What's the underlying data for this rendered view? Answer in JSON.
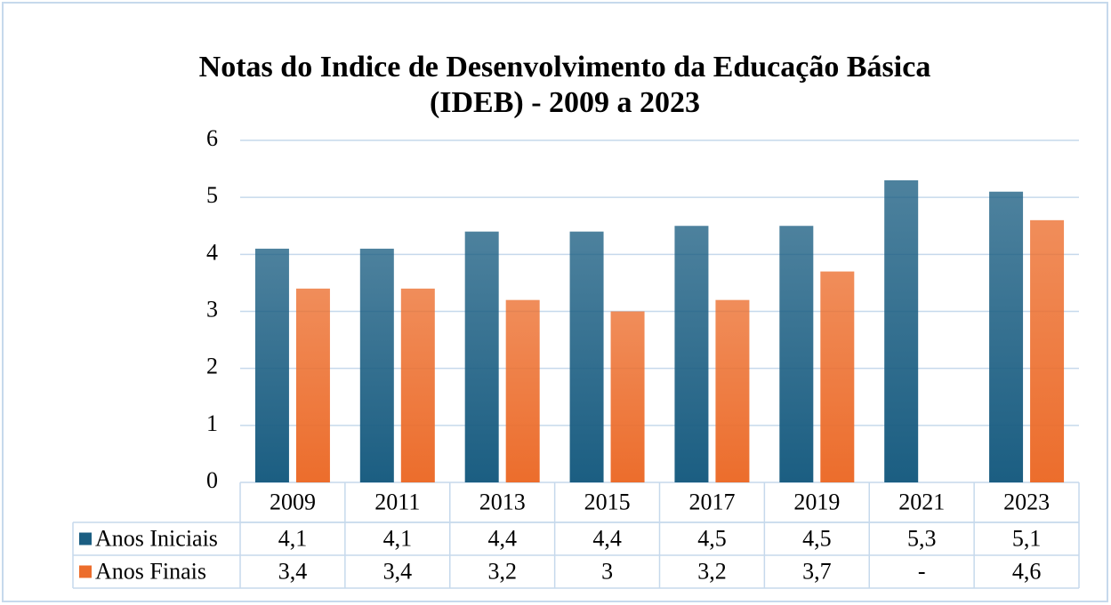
{
  "chart_data": {
    "type": "bar",
    "title": "Notas do Indice de Desenvolvimento da Educação Básica",
    "subtitle": "(IDEB) - 2009 a 2023",
    "categories": [
      "2009",
      "2011",
      "2013",
      "2015",
      "2017",
      "2019",
      "2021",
      "2023"
    ],
    "series": [
      {
        "name": "Anos Iniciais",
        "color": "#1b5e82",
        "values": [
          4.1,
          4.1,
          4.4,
          4.4,
          4.5,
          4.5,
          5.3,
          5.1
        ],
        "value_labels": [
          "4,1",
          "4,1",
          "4,4",
          "4,4",
          "4,5",
          "4,5",
          "5,3",
          "5,1"
        ]
      },
      {
        "name": "Anos Finais",
        "color": "#ec6d2c",
        "values": [
          3.4,
          3.4,
          3.2,
          3,
          3.2,
          3.7,
          null,
          4.6
        ],
        "value_labels": [
          "3,4",
          "3,4",
          "3,2",
          "3",
          "3,2",
          "3,7",
          "-",
          "4,6"
        ]
      }
    ],
    "ylim": [
      0,
      6
    ],
    "yticks": [
      0,
      1,
      2,
      3,
      4,
      5,
      6
    ],
    "grid": true
  }
}
